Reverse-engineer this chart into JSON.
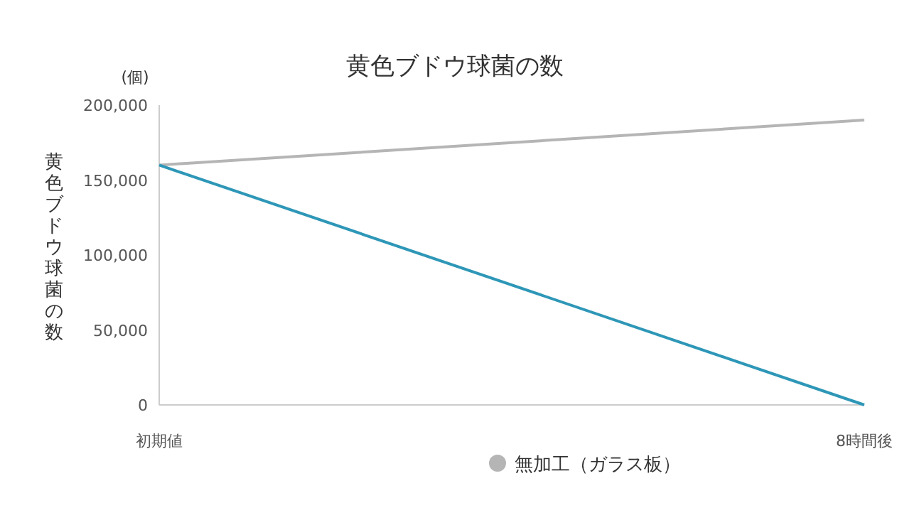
{
  "chart_data": {
    "type": "line",
    "title": "黄色ブドウ球菌の数",
    "ylabel": "黄色ブドウ球菌の数",
    "annotations": [
      "(個)"
    ],
    "categories": [
      "初期値",
      "8時間後"
    ],
    "series": [
      {
        "color": "#2e97b7",
        "values": [
          160000,
          0
        ]
      },
      {
        "name": "無加工（ガラス板）",
        "color": "#b5b5b5",
        "values": [
          160000,
          190000
        ]
      }
    ],
    "ylim": [
      0,
      200000
    ],
    "yticks": [
      {
        "value": 0,
        "label": "0"
      },
      {
        "value": 50000,
        "label": "50,000"
      },
      {
        "value": 100000,
        "label": "100,000"
      },
      {
        "value": 150000,
        "label": "150,000"
      },
      {
        "value": 200000,
        "label": "200,000"
      }
    ],
    "grid": false,
    "legend": "bottom",
    "marker": "none",
    "line_style": "solid"
  }
}
